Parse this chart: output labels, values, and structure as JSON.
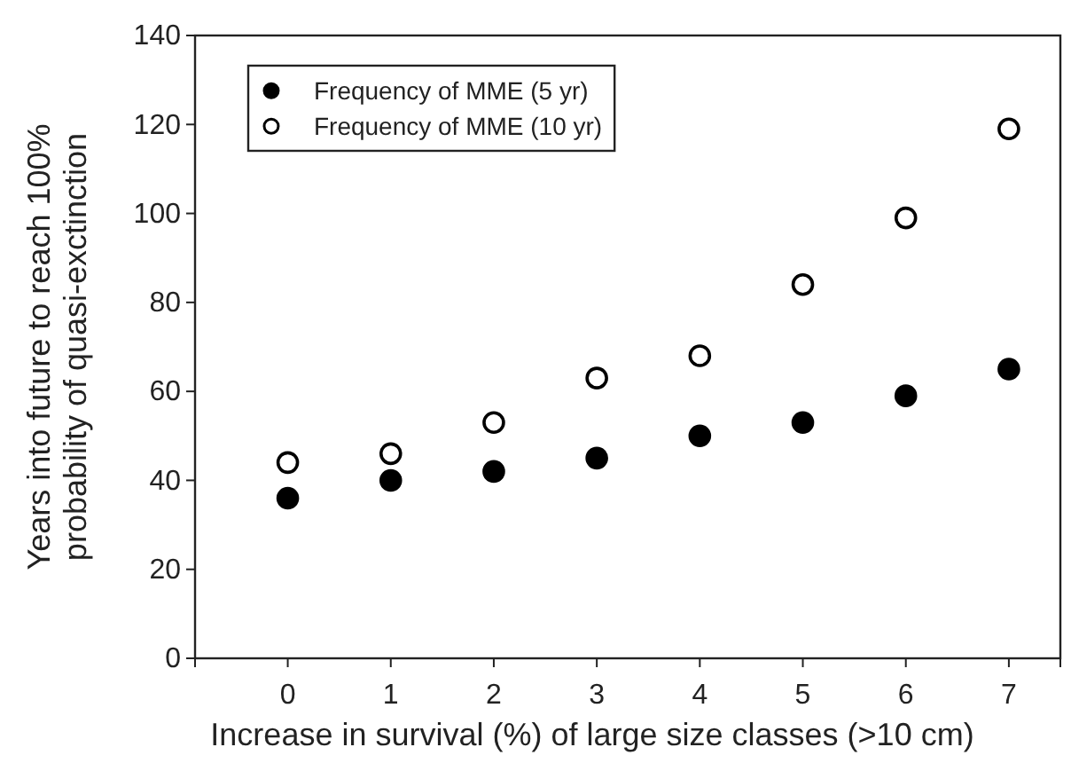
{
  "chart_data": {
    "type": "scatter",
    "xlabel": "Increase in survival (%) of large size classes (>10 cm)",
    "ylabel": "Years into future to reach 100%\nprobability of quasi-exctinction",
    "x": [
      0,
      1,
      2,
      3,
      4,
      5,
      6,
      7
    ],
    "series": [
      {
        "name": "Frequency of MME (5 yr)",
        "color": "#000000",
        "values": [
          36,
          40,
          42,
          45,
          50,
          53,
          59,
          65
        ]
      },
      {
        "name": "Frequency of MME (10 yr)",
        "color": "#ffffff",
        "values": [
          44,
          46,
          53,
          63,
          68,
          84,
          99,
          119
        ]
      }
    ],
    "xlim": [
      -0.9,
      7.5
    ],
    "xticks": [
      0,
      1,
      2,
      3,
      4,
      5,
      6,
      7
    ],
    "ylim": [
      0,
      140
    ],
    "yticks": [
      0,
      20,
      40,
      60,
      80,
      100,
      120,
      140
    ],
    "marker": "circle",
    "legend": "top left",
    "grid": false
  }
}
